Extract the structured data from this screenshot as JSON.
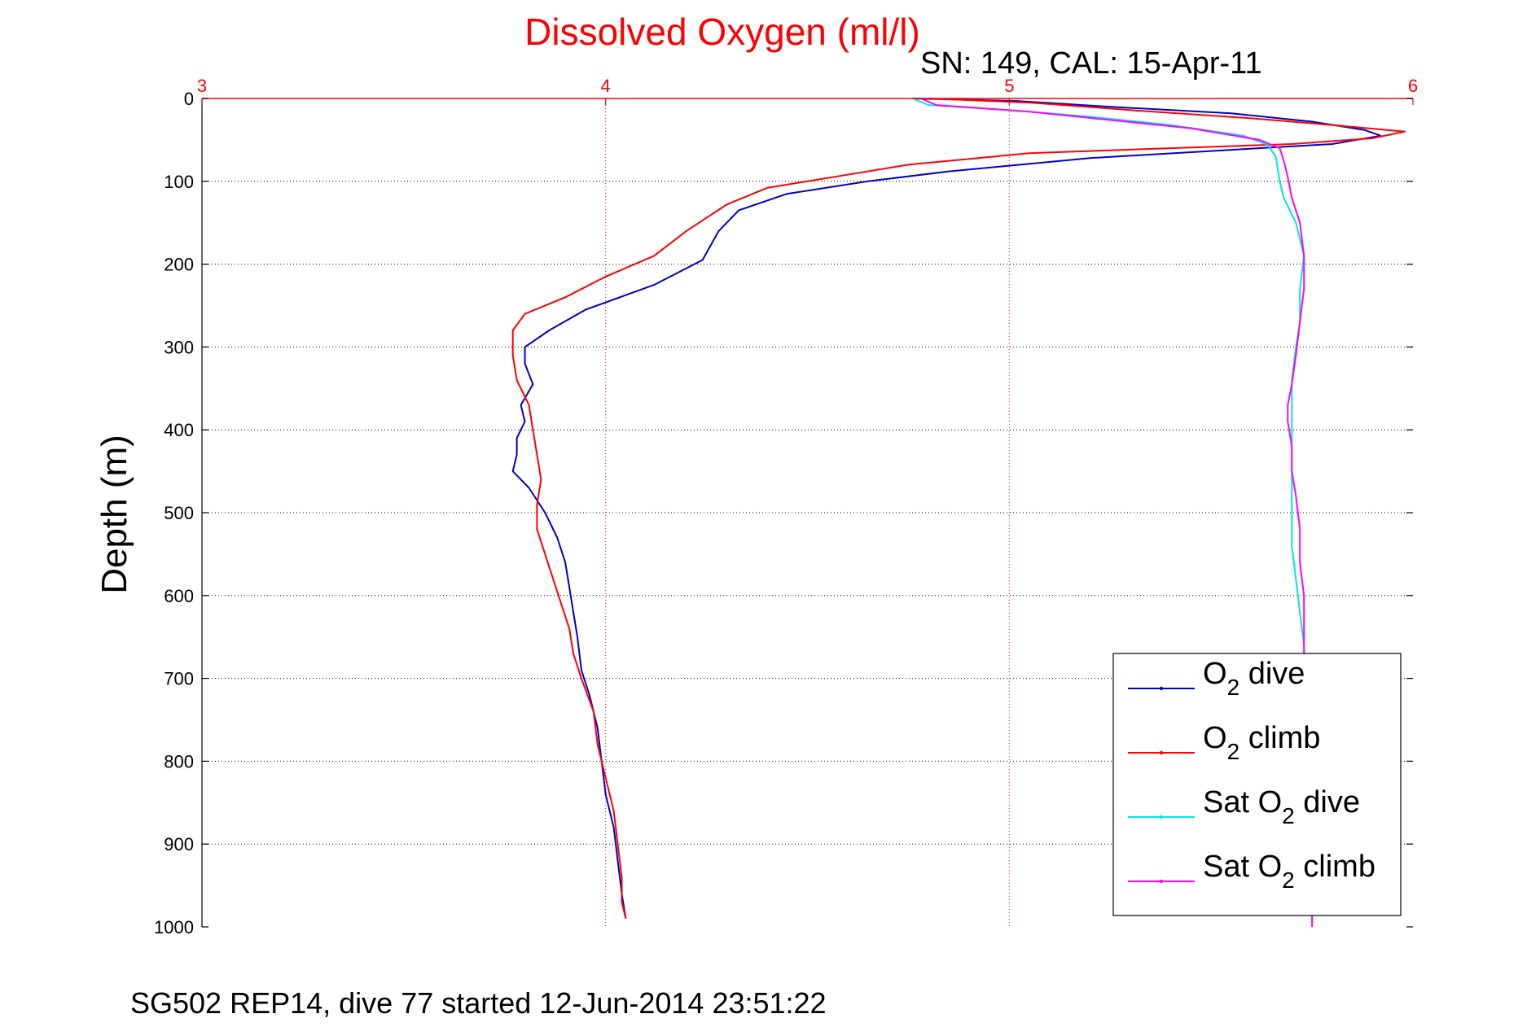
{
  "chart_data": {
    "type": "line",
    "title": "Dissolved Oxygen (ml/l)",
    "subtitle": "SN: 149, CAL: 15-Apr-11",
    "footer": "SG502 REP14, dive 77 started 12-Jun-2014 23:51:22",
    "xlabel": "",
    "ylabel": "Depth (m)",
    "xlim": [
      3,
      6
    ],
    "ylim": [
      0,
      1000
    ],
    "y_reversed": true,
    "x_ticks": [
      "3",
      "4",
      "5",
      "6"
    ],
    "y_ticks": [
      "0",
      "100",
      "200",
      "300",
      "400",
      "500",
      "600",
      "700",
      "800",
      "900",
      "1000"
    ],
    "x_axis_position": "top",
    "grid": true,
    "legend_position": "bottom-right",
    "colors": {
      "title": "#ff0000",
      "x_axis": "#ff0000",
      "grid_vertical": "#ff0000",
      "grid_horizontal": "#000000"
    },
    "series": [
      {
        "name": "O2 dive",
        "legend": {
          "main": "O",
          "sub": "2",
          "rest": " dive"
        },
        "color": "#0000cc",
        "points": [
          [
            4.76,
            0
          ],
          [
            5.02,
            3
          ],
          [
            5.25,
            10
          ],
          [
            5.55,
            18
          ],
          [
            5.75,
            28
          ],
          [
            5.88,
            38
          ],
          [
            5.92,
            45
          ],
          [
            5.8,
            55
          ],
          [
            5.55,
            62
          ],
          [
            5.2,
            72
          ],
          [
            4.85,
            88
          ],
          [
            4.65,
            100
          ],
          [
            4.45,
            115
          ],
          [
            4.33,
            135
          ],
          [
            4.28,
            160
          ],
          [
            4.24,
            195
          ],
          [
            4.12,
            225
          ],
          [
            3.95,
            255
          ],
          [
            3.86,
            280
          ],
          [
            3.8,
            300
          ],
          [
            3.8,
            320
          ],
          [
            3.82,
            345
          ],
          [
            3.79,
            370
          ],
          [
            3.8,
            390
          ],
          [
            3.78,
            410
          ],
          [
            3.78,
            430
          ],
          [
            3.77,
            450
          ],
          [
            3.81,
            470
          ],
          [
            3.85,
            500
          ],
          [
            3.88,
            530
          ],
          [
            3.9,
            560
          ],
          [
            3.91,
            590
          ],
          [
            3.92,
            620
          ],
          [
            3.93,
            650
          ],
          [
            3.94,
            690
          ],
          [
            3.96,
            720
          ],
          [
            3.98,
            760
          ],
          [
            3.99,
            800
          ],
          [
            4.0,
            840
          ],
          [
            4.02,
            880
          ],
          [
            4.03,
            920
          ],
          [
            4.04,
            960
          ],
          [
            4.05,
            990
          ]
        ]
      },
      {
        "name": "O2 climb",
        "legend": {
          "main": "O",
          "sub": "2",
          "rest": " climb"
        },
        "color": "#ff0000",
        "points": [
          [
            4.8,
            0
          ],
          [
            5.05,
            5
          ],
          [
            5.3,
            14
          ],
          [
            5.6,
            24
          ],
          [
            5.8,
            32
          ],
          [
            5.98,
            40
          ],
          [
            5.9,
            48
          ],
          [
            5.7,
            55
          ],
          [
            5.4,
            60
          ],
          [
            5.05,
            66
          ],
          [
            4.75,
            80
          ],
          [
            4.55,
            96
          ],
          [
            4.4,
            108
          ],
          [
            4.3,
            128
          ],
          [
            4.2,
            160
          ],
          [
            4.12,
            190
          ],
          [
            4.0,
            215
          ],
          [
            3.9,
            240
          ],
          [
            3.8,
            260
          ],
          [
            3.77,
            280
          ],
          [
            3.77,
            310
          ],
          [
            3.78,
            340
          ],
          [
            3.81,
            370
          ],
          [
            3.82,
            400
          ],
          [
            3.83,
            430
          ],
          [
            3.84,
            460
          ],
          [
            3.83,
            490
          ],
          [
            3.83,
            520
          ],
          [
            3.85,
            550
          ],
          [
            3.87,
            580
          ],
          [
            3.89,
            610
          ],
          [
            3.91,
            640
          ],
          [
            3.92,
            670
          ],
          [
            3.94,
            700
          ],
          [
            3.97,
            740
          ],
          [
            3.98,
            780
          ],
          [
            4.0,
            820
          ],
          [
            4.02,
            860
          ],
          [
            4.03,
            900
          ],
          [
            4.04,
            940
          ],
          [
            4.04,
            970
          ],
          [
            4.05,
            990
          ]
        ]
      },
      {
        "name": "Sat O2 dive",
        "legend": {
          "main": "Sat O",
          "sub": "2",
          "rest": " dive"
        },
        "color": "#00e5e5",
        "points": [
          [
            4.76,
            0
          ],
          [
            4.8,
            8
          ],
          [
            5.0,
            14
          ],
          [
            5.2,
            22
          ],
          [
            5.4,
            32
          ],
          [
            5.58,
            45
          ],
          [
            5.64,
            56
          ],
          [
            5.66,
            70
          ],
          [
            5.67,
            100
          ],
          [
            5.68,
            120
          ],
          [
            5.71,
            150
          ],
          [
            5.73,
            190
          ],
          [
            5.72,
            230
          ],
          [
            5.72,
            270
          ],
          [
            5.71,
            300
          ],
          [
            5.7,
            340
          ],
          [
            5.7,
            380
          ],
          [
            5.7,
            420
          ],
          [
            5.7,
            460
          ],
          [
            5.7,
            500
          ],
          [
            5.7,
            540
          ],
          [
            5.71,
            580
          ],
          [
            5.72,
            620
          ],
          [
            5.73,
            660
          ]
        ]
      },
      {
        "name": "Sat O2 climb",
        "legend": {
          "main": "Sat O",
          "sub": "2",
          "rest": " climb"
        },
        "color": "#ff00ff",
        "points": [
          [
            4.78,
            0
          ],
          [
            4.82,
            8
          ],
          [
            5.05,
            16
          ],
          [
            5.25,
            26
          ],
          [
            5.45,
            36
          ],
          [
            5.62,
            50
          ],
          [
            5.67,
            60
          ],
          [
            5.68,
            75
          ],
          [
            5.69,
            95
          ],
          [
            5.7,
            120
          ],
          [
            5.72,
            150
          ],
          [
            5.73,
            190
          ],
          [
            5.73,
            230
          ],
          [
            5.72,
            270
          ],
          [
            5.71,
            310
          ],
          [
            5.7,
            345
          ],
          [
            5.69,
            370
          ],
          [
            5.69,
            390
          ],
          [
            5.7,
            420
          ],
          [
            5.7,
            450
          ],
          [
            5.71,
            480
          ],
          [
            5.72,
            520
          ],
          [
            5.72,
            560
          ],
          [
            5.73,
            600
          ],
          [
            5.73,
            640
          ],
          [
            5.73,
            680
          ],
          [
            5.74,
            720
          ],
          [
            5.74,
            760
          ],
          [
            5.74,
            800
          ],
          [
            5.74,
            840
          ],
          [
            5.74,
            880
          ],
          [
            5.75,
            920
          ],
          [
            5.75,
            960
          ],
          [
            5.75,
            1000
          ]
        ]
      }
    ]
  }
}
